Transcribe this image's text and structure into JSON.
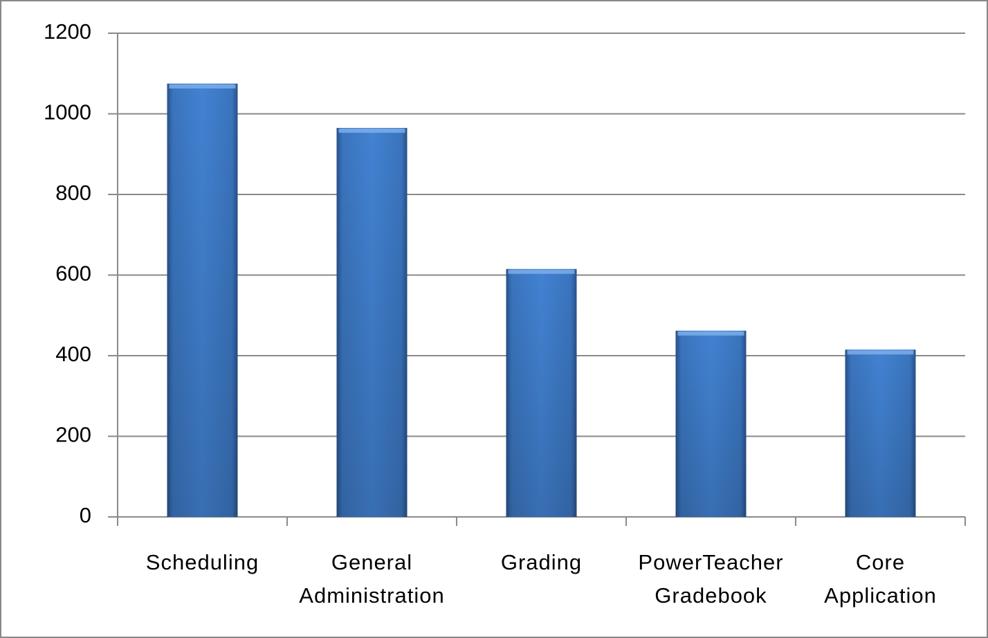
{
  "chart_data": {
    "type": "bar",
    "categories": [
      "Scheduling",
      "General Administration",
      "Grading",
      "PowerTeacher Gradebook",
      "Core Application"
    ],
    "values": [
      1075,
      965,
      615,
      462,
      415
    ],
    "color": "#3d7cc9",
    "ylim": [
      0,
      1200
    ],
    "yticks": [
      0,
      200,
      400,
      600,
      800,
      1000,
      1200
    ],
    "grid": true
  }
}
